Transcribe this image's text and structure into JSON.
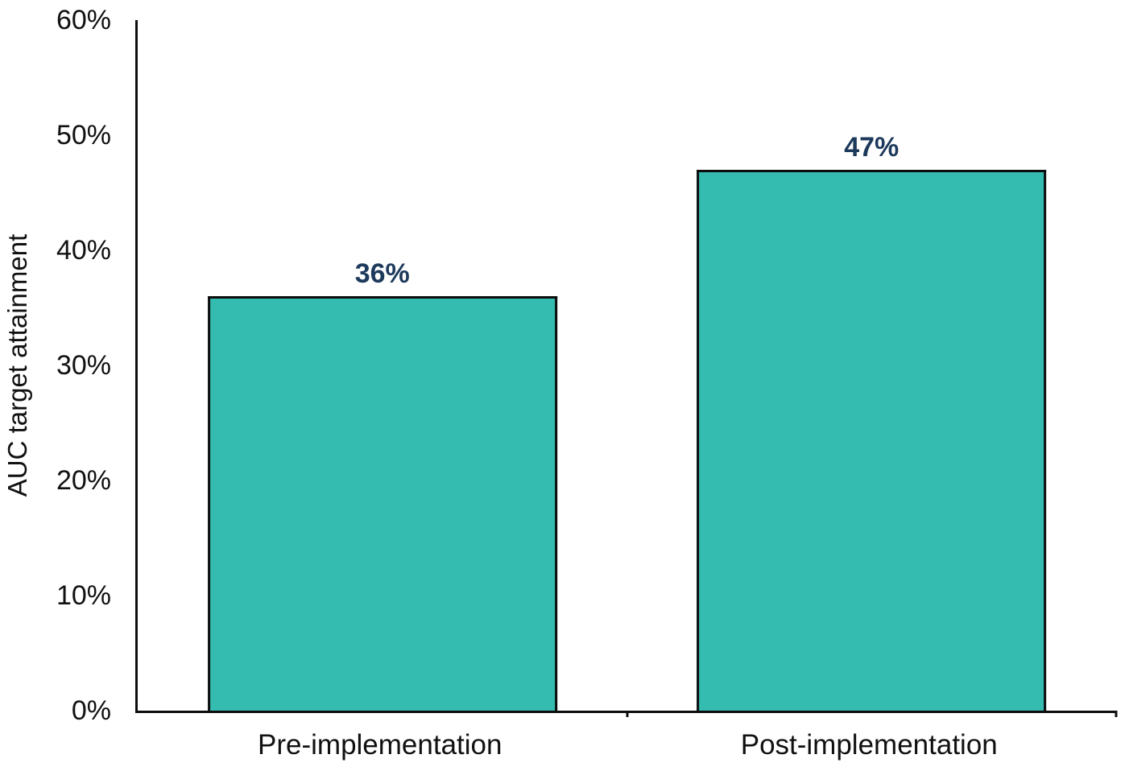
{
  "chart_data": {
    "type": "bar",
    "categories": [
      "Pre-implementation",
      "Post-implementation"
    ],
    "values": [
      36,
      47
    ],
    "value_labels": [
      "36%",
      "47%"
    ],
    "title": "",
    "xlabel": "",
    "ylabel": "AUC target attainment",
    "ylim": [
      0,
      60
    ],
    "yticks": [
      0,
      10,
      20,
      30,
      40,
      50,
      60
    ],
    "ytick_labels": [
      "0%",
      "10%",
      "20%",
      "30%",
      "40%",
      "50%",
      "60%"
    ],
    "grid": false,
    "legend": "none",
    "colors": {
      "bar_fill": "#35bcb1",
      "bar_border": "#0d0d0d",
      "value_label": "#1d3a5c",
      "axis": "#0d0d0d",
      "tick_text": "#111111"
    }
  }
}
